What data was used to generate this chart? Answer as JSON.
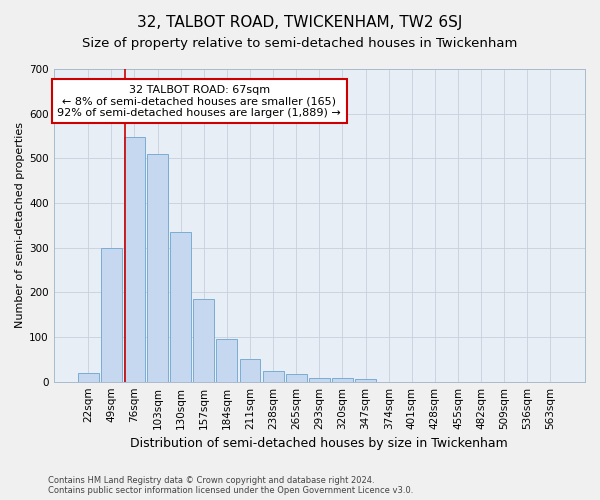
{
  "title": "32, TALBOT ROAD, TWICKENHAM, TW2 6SJ",
  "subtitle": "Size of property relative to semi-detached houses in Twickenham",
  "xlabel": "Distribution of semi-detached houses by size in Twickenham",
  "ylabel": "Number of semi-detached properties",
  "categories": [
    "22sqm",
    "49sqm",
    "76sqm",
    "103sqm",
    "130sqm",
    "157sqm",
    "184sqm",
    "211sqm",
    "238sqm",
    "265sqm",
    "293sqm",
    "320sqm",
    "347sqm",
    "374sqm",
    "401sqm",
    "428sqm",
    "455sqm",
    "482sqm",
    "509sqm",
    "536sqm",
    "563sqm"
  ],
  "values": [
    20,
    300,
    548,
    510,
    335,
    185,
    96,
    50,
    23,
    18,
    8,
    8,
    5,
    0,
    0,
    0,
    0,
    0,
    0,
    0,
    0
  ],
  "bar_color": "#c5d8f0",
  "bar_edge_color": "#7aadd4",
  "vline_x": 1.575,
  "annotation_text": "32 TALBOT ROAD: 67sqm\n← 8% of semi-detached houses are smaller (165)\n92% of semi-detached houses are larger (1,889) →",
  "annotation_box_color": "#ffffff",
  "annotation_box_edge": "#cc0000",
  "vline_color": "#cc0000",
  "ylim": [
    0,
    700
  ],
  "yticks": [
    0,
    100,
    200,
    300,
    400,
    500,
    600,
    700
  ],
  "grid_color": "#c8d0dc",
  "bg_color": "#e8eef6",
  "fig_bg_color": "#f0f0f0",
  "footer": "Contains HM Land Registry data © Crown copyright and database right 2024.\nContains public sector information licensed under the Open Government Licence v3.0.",
  "title_fontsize": 11,
  "subtitle_fontsize": 9.5,
  "xlabel_fontsize": 9,
  "ylabel_fontsize": 8,
  "tick_fontsize": 7.5,
  "annotation_fontsize": 8,
  "footer_fontsize": 6
}
